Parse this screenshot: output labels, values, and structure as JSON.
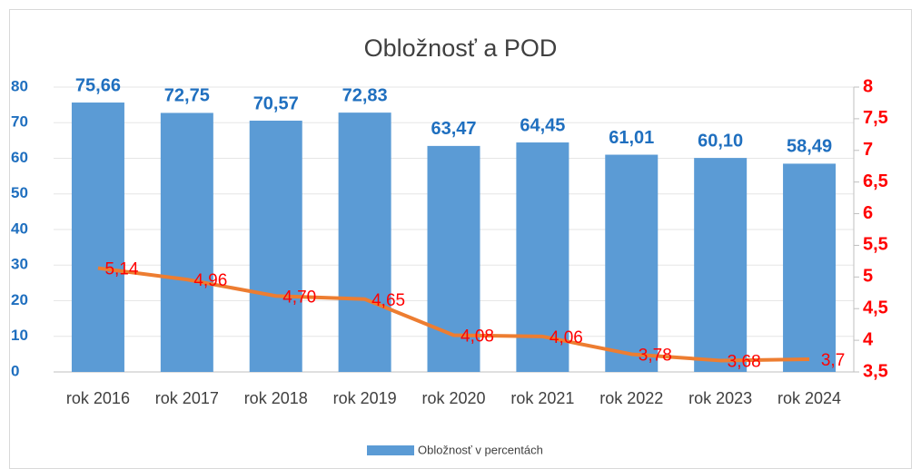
{
  "chart_data": {
    "type": "bar",
    "title": "Obložnosť a POD",
    "categories": [
      "rok 2016",
      "rok 2017",
      "rok 2018",
      "rok 2019",
      "rok 2020",
      "rok 2021",
      "rok 2022",
      "rok 2023",
      "rok 2024"
    ],
    "series": [
      {
        "name": "Obložnosť  v percentách",
        "type": "bar",
        "color": "#5b9bd5",
        "values": [
          75.66,
          72.75,
          70.57,
          72.83,
          63.47,
          64.45,
          61.01,
          60.1,
          58.49
        ],
        "value_labels": [
          "75,66",
          "72,75",
          "70,57",
          "72,83",
          "63,47",
          "64,45",
          "61,01",
          "60,10",
          "58,49"
        ]
      },
      {
        "type": "line",
        "axis": "y2",
        "color": "#ed7d31",
        "values": [
          5.14,
          4.96,
          4.7,
          4.65,
          4.08,
          4.06,
          3.78,
          3.68,
          3.7
        ],
        "value_labels": [
          "5,14",
          "4,96",
          "4,70",
          "4,65",
          "4,08",
          "4,06",
          "3,78",
          "3,68",
          "3,7"
        ]
      }
    ],
    "ylim": [
      0,
      80
    ],
    "yticks": [
      0,
      10,
      20,
      30,
      40,
      50,
      60,
      70,
      80
    ],
    "y2lim": [
      3.5,
      8
    ],
    "y2ticks": [
      {
        "value": 3.5,
        "label": "3,5"
      },
      4,
      {
        "value": 4.5,
        "label": "4,5"
      },
      5,
      {
        "value": 5.5,
        "label": "5,5"
      },
      6,
      {
        "value": 6.5,
        "label": "6,5"
      },
      7,
      {
        "value": 7.5,
        "label": "7,5"
      },
      8
    ],
    "grid": true,
    "legend": "bottom"
  }
}
